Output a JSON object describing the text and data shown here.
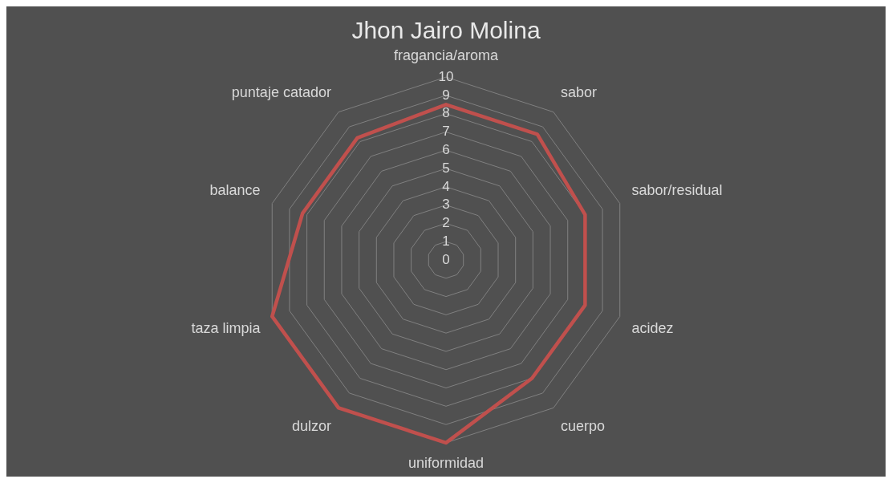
{
  "chart_data": {
    "type": "radar",
    "title": "Jhon Jairo Molina",
    "categories": [
      "fragancia/aroma",
      "sabor",
      "sabor/residual",
      "acidez",
      "cuerpo",
      "uniformidad",
      "dulzor",
      "taza limpia",
      "balance",
      "puntaje catador"
    ],
    "series": [
      {
        "color": "#c0504d",
        "values": [
          8.5,
          8.5,
          8,
          8,
          8,
          10,
          10,
          10,
          8.25,
          8.25
        ]
      }
    ],
    "ylim": [
      0,
      10
    ],
    "yticks": [
      0,
      1,
      2,
      3,
      4,
      5,
      6,
      7,
      8,
      9,
      10
    ],
    "grid": true,
    "legend": false,
    "marker": "none",
    "line_style": "solid"
  }
}
